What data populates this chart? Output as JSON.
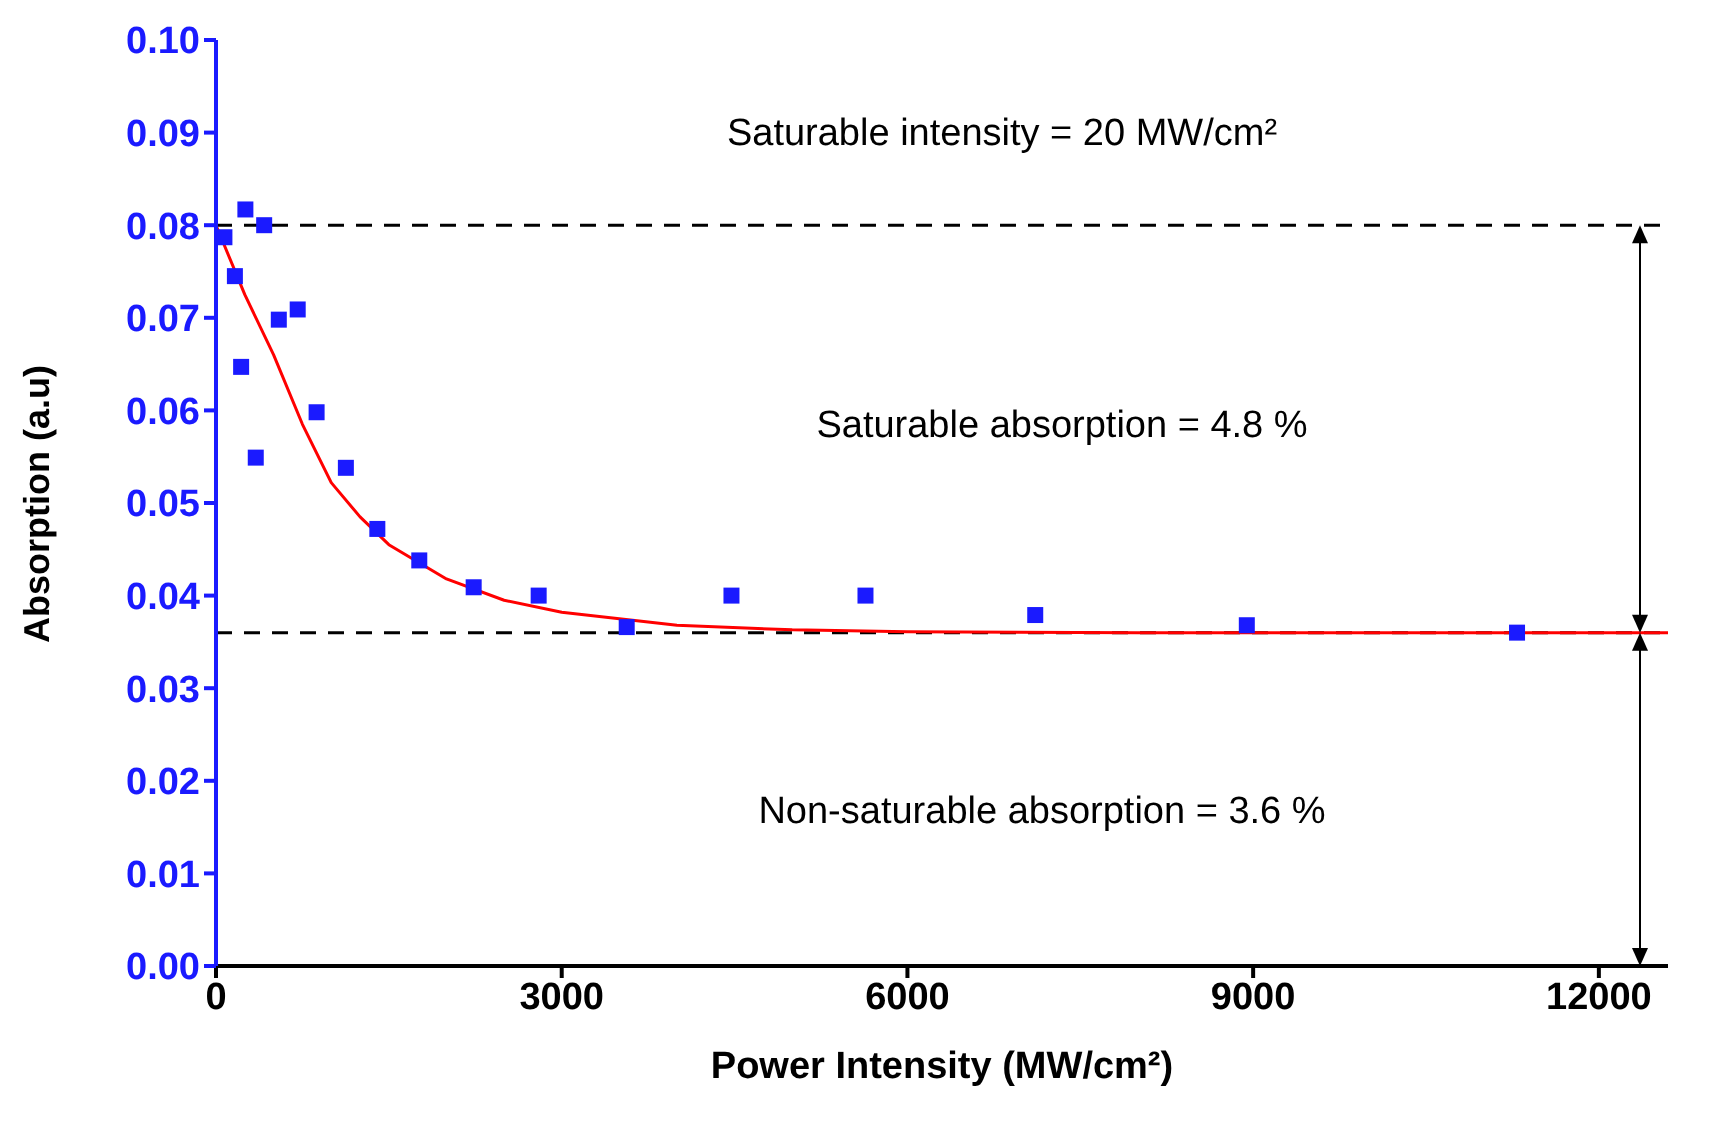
{
  "chart_data": {
    "type": "scatter",
    "xlabel": "Power Intensity (MW/cm²)",
    "ylabel": "Absorption (a.u)",
    "xlim": [
      0,
      12600
    ],
    "xticks": [
      0,
      3000,
      6000,
      9000,
      12000
    ],
    "ylim": [
      0,
      0.1
    ],
    "yticks": [
      {
        "value": 0,
        "label": "0.00"
      },
      {
        "value": 0.01,
        "label": "0.01"
      },
      {
        "value": 0.02,
        "label": "0.02"
      },
      {
        "value": 0.03,
        "label": "0.03"
      },
      {
        "value": 0.04,
        "label": "0.04"
      },
      {
        "value": 0.05,
        "label": "0.05"
      },
      {
        "value": 0.06,
        "label": "0.06"
      },
      {
        "value": 0.07,
        "label": "0.07"
      },
      {
        "value": 0.08,
        "label": "0.08"
      },
      {
        "value": 0.09,
        "label": "0.09"
      },
      {
        "value": 0.1,
        "label": "0.10"
      }
    ],
    "marker": "square",
    "series": [
      {
        "color": "#1a1aff",
        "x": [
          73,
          164,
          255,
          218,
          345,
          418,
          545,
          709,
          873,
          1127,
          1400,
          1764,
          2236,
          2800,
          3564,
          4473,
          5636,
          7109,
          8945,
          11290
        ],
        "values": [
          0.0787,
          0.0745,
          0.0817,
          0.0647,
          0.0549,
          0.08,
          0.0698,
          0.0709,
          0.0598,
          0.0538,
          0.0472,
          0.0438,
          0.0409,
          0.04,
          0.0366,
          0.04,
          0.04,
          0.0379,
          0.0368,
          0.036
        ]
      },
      {
        "type": "line",
        "color": "#ff0000",
        "marker": "none",
        "line_style": "solid",
        "x": [
          0,
          250,
          500,
          750,
          1000,
          1250,
          1500,
          2000,
          2500,
          3000,
          4000,
          5000,
          6000,
          8000,
          10000,
          12600
        ],
        "values": [
          0.08,
          0.0725,
          0.066,
          0.0585,
          0.0522,
          0.0485,
          0.0455,
          0.0418,
          0.0395,
          0.0382,
          0.0368,
          0.0363,
          0.0361,
          0.036,
          0.036,
          0.036
        ]
      }
    ],
    "ref_lines": [
      {
        "axis": "y",
        "value": 0.08,
        "color": "#000000",
        "line_style": "dashed"
      },
      {
        "axis": "y",
        "value": 0.036,
        "color": "#000000",
        "line_style": "dashed"
      }
    ],
    "annotations": [
      "Saturable intensity = 20 MW/cm²",
      "Saturable absorption  = 4.8 %",
      "Non-saturable absorption = 3.6 %"
    ]
  }
}
